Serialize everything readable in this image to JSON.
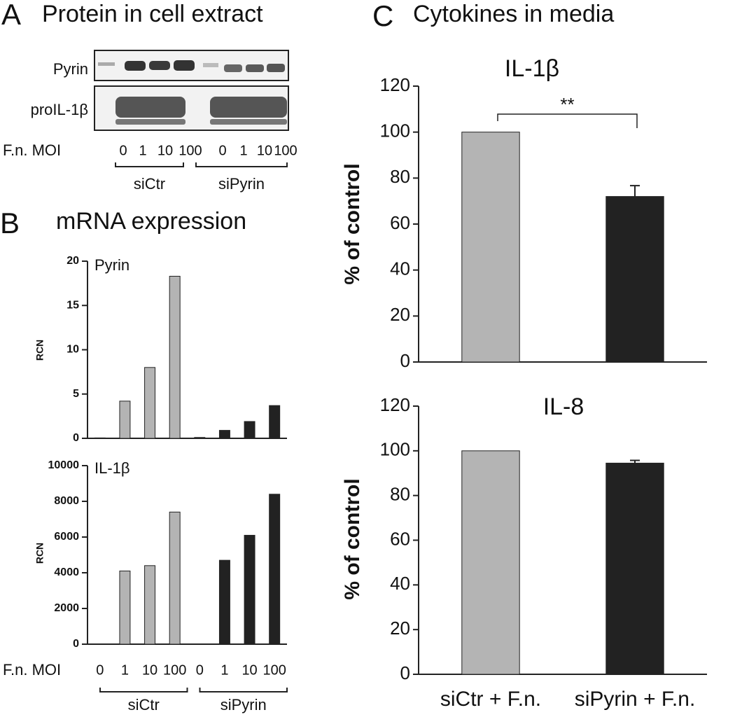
{
  "panel_a": {
    "letter": "A",
    "title": "Protein in cell extract",
    "rows": [
      "Pyrin",
      "proIL-1β"
    ],
    "x_label": "F.n. MOI",
    "lanes": [
      "0",
      "1",
      "10",
      "100",
      "0",
      "1",
      "10",
      "100"
    ],
    "groups": [
      "siCtr",
      "siPyrin"
    ]
  },
  "panel_b": {
    "letter": "B",
    "title": "mRNA expression"
  },
  "panel_c": {
    "letter": "C",
    "title": "Cytokines in media"
  },
  "chart_data": [
    {
      "type": "bar",
      "title": "Pyrin",
      "y_label": "RCN",
      "categories": [
        null,
        null,
        null,
        null,
        null,
        null,
        null,
        null
      ],
      "values": [
        0.05,
        4.2,
        8,
        18.3,
        0.1,
        0.9,
        1.9,
        3.7
      ],
      "colors": [
        "#b4b4b4",
        "#b4b4b4",
        "#b4b4b4",
        "#b4b4b4",
        "#222222",
        "#222222",
        "#222222",
        "#222222"
      ],
      "ylim": [
        0,
        20
      ],
      "yticks": [
        0,
        5,
        10,
        15,
        20
      ]
    },
    {
      "type": "bar",
      "title": "IL-1β",
      "y_label": "RCN",
      "x_label": "F.n. MOI",
      "categories": [
        "0",
        "1",
        "10",
        "100",
        "0",
        "1",
        "10",
        "100"
      ],
      "groups": [
        "siCtr",
        "siPyrin"
      ],
      "values": [
        0,
        4100,
        4400,
        7400,
        0,
        4700,
        6100,
        8400
      ],
      "colors": [
        "#b4b4b4",
        "#b4b4b4",
        "#b4b4b4",
        "#b4b4b4",
        "#222222",
        "#222222",
        "#222222",
        "#222222"
      ],
      "ylim": [
        0,
        10000
      ],
      "yticks": [
        0,
        2000,
        4000,
        6000,
        8000,
        10000
      ]
    },
    {
      "type": "bar",
      "title": "IL-1β",
      "y_label": "% of control",
      "annotation": "**",
      "categories": [
        null,
        null
      ],
      "values": [
        100,
        72
      ],
      "errors": [
        null,
        4.7
      ],
      "colors": [
        "#b4b4b4",
        "#222222"
      ],
      "ylim": [
        0,
        120
      ],
      "yticks": [
        0,
        20,
        40,
        60,
        80,
        100,
        120
      ]
    },
    {
      "type": "bar",
      "title": "IL-8",
      "y_label": "% of control",
      "categories": [
        "siCtr + F.n.",
        "siPyrin + F.n."
      ],
      "values": [
        100,
        94.5
      ],
      "errors": [
        null,
        1.2
      ],
      "colors": [
        "#b4b4b4",
        "#222222"
      ],
      "ylim": [
        0,
        120
      ],
      "yticks": [
        0,
        20,
        40,
        60,
        80,
        100,
        120
      ]
    }
  ]
}
